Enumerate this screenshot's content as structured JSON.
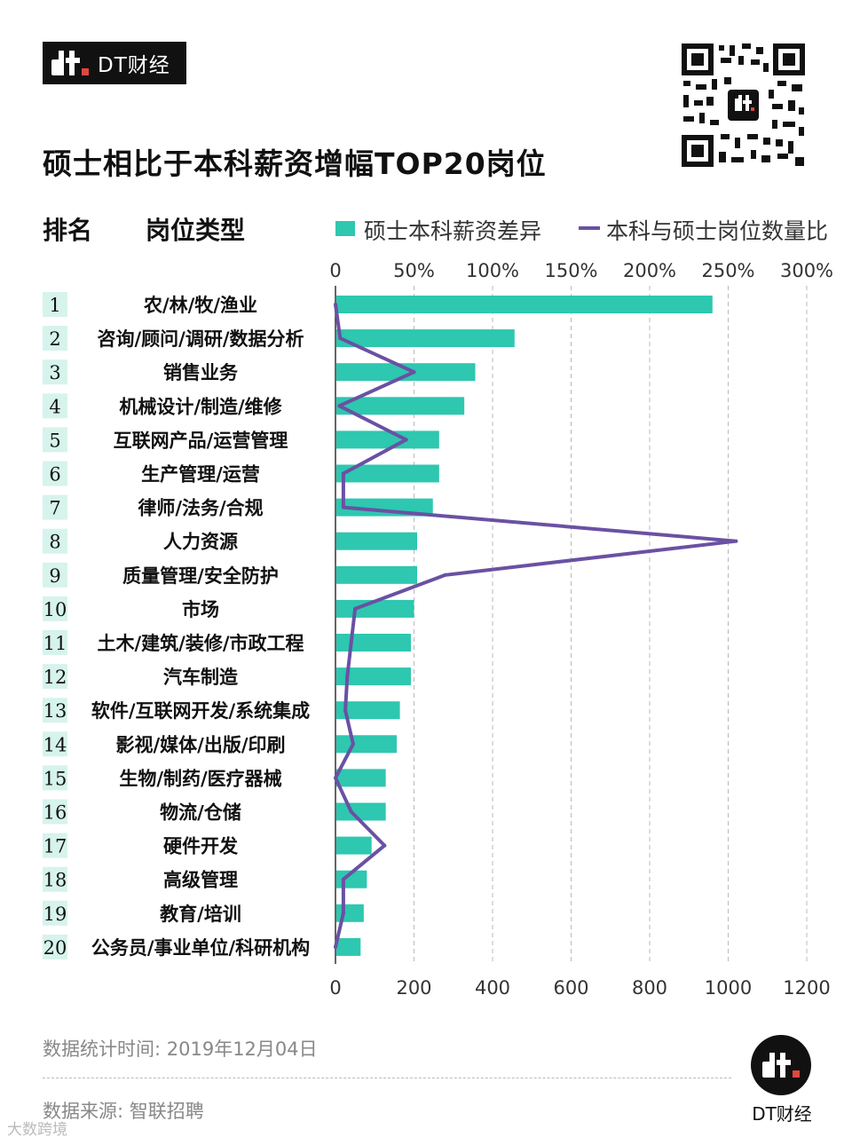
{
  "brand": {
    "name": "DT财经",
    "logo_text": "dt"
  },
  "colors": {
    "bar": "#2ec7b0",
    "line": "#6a51a3",
    "rank_bg": "#d6f3ec",
    "grid": "#b9b9b9",
    "text": "#111111",
    "muted": "#888888"
  },
  "headers": {
    "rank": "排名",
    "type": "岗位类型"
  },
  "legend": {
    "bar_label": "硕士本科薪资差异",
    "line_label": "本科与硕士岗位数量比"
  },
  "chart_data": {
    "type": "bar",
    "title": "硕士相比于本科薪资增幅TOP20岗位",
    "ranks": [
      "1",
      "2",
      "3",
      "4",
      "5",
      "6",
      "7",
      "8",
      "9",
      "10",
      "11",
      "12",
      "13",
      "14",
      "15",
      "16",
      "17",
      "18",
      "19",
      "20"
    ],
    "categories": [
      "农/林/牧/渔业",
      "咨询/顾问/调研/数据分析",
      "销售业务",
      "机械设计/制造/维修",
      "互联网产品/运营管理",
      "生产管理/运营",
      "律师/法务/合规",
      "人力资源",
      "质量管理/安全防护",
      "市场",
      "土木/建筑/装修/市政工程",
      "汽车制造",
      "软件/互联网开发/系统集成",
      "影视/媒体/出版/印刷",
      "生物/制药/医疗器械",
      "物流/仓储",
      "硬件开发",
      "高级管理",
      "教育/培训",
      "公务员/事业单位/科研机构"
    ],
    "series": [
      {
        "name": "硕士本科薪资差异",
        "type": "bar",
        "axis": "top",
        "unit": "%",
        "values": [
          240,
          114,
          89,
          82,
          66,
          66,
          62,
          52,
          52,
          50,
          48,
          48,
          41,
          39,
          32,
          32,
          23,
          20,
          18,
          16
        ]
      },
      {
        "name": "本科与硕士岗位数量比",
        "type": "line",
        "axis": "bottom",
        "values": [
          0,
          12,
          200,
          10,
          180,
          20,
          20,
          1020,
          280,
          50,
          40,
          30,
          25,
          45,
          0,
          40,
          125,
          20,
          20,
          0
        ]
      }
    ],
    "x_top": {
      "range": [
        0,
        300
      ],
      "ticks": [
        0,
        50,
        100,
        150,
        200,
        250,
        300
      ],
      "tick_labels": [
        "0",
        "50%",
        "100%",
        "150%",
        "200%",
        "250%",
        "300%"
      ]
    },
    "x_bottom": {
      "range": [
        0,
        1200
      ],
      "ticks": [
        0,
        200,
        400,
        600,
        800,
        1000,
        1200
      ],
      "tick_labels": [
        "0",
        "200",
        "400",
        "600",
        "800",
        "1000",
        "1200"
      ]
    },
    "grid": true
  },
  "footer": {
    "date": "数据统计时间: 2019年12月04日",
    "source": "数据来源: 智联招聘",
    "watermark": "大数跨境"
  }
}
